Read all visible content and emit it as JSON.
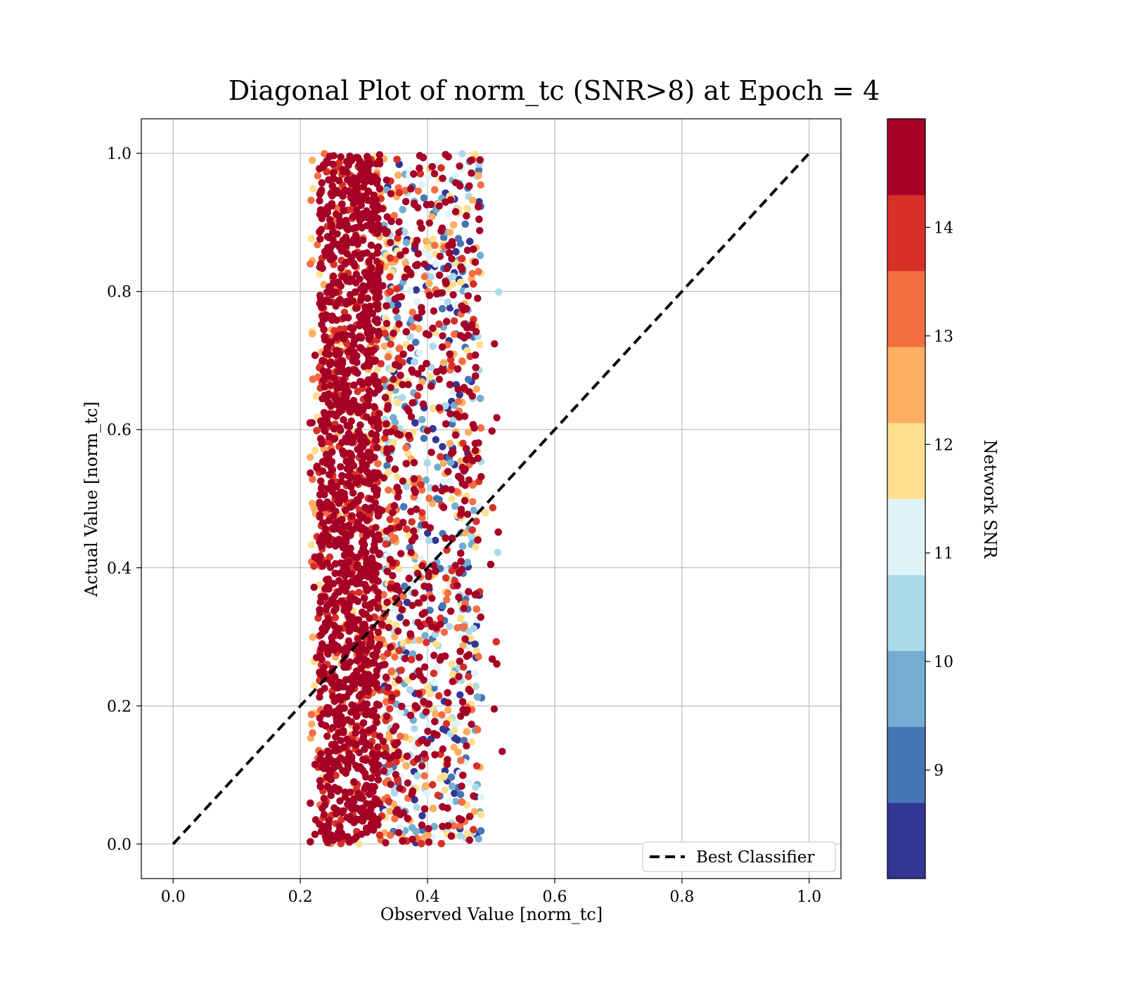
{
  "chart_data": {
    "type": "scatter",
    "title": "Diagonal Plot of norm_tc (SNR>8) at Epoch = 4",
    "xlabel": "Observed Value [norm_tc]",
    "ylabel": "Actual Value [norm_tc]",
    "xlim": [
      -0.05,
      1.05
    ],
    "ylim": [
      -0.05,
      1.05
    ],
    "xticks": [
      "0.0",
      "0.2",
      "0.4",
      "0.6",
      "0.8",
      "1.0"
    ],
    "yticks": [
      "0.0",
      "0.2",
      "0.4",
      "0.6",
      "0.8",
      "1.0"
    ],
    "grid": true,
    "reference_line": {
      "label": "Best Classifier",
      "x": [
        0.0,
        1.0
      ],
      "y": [
        0.0,
        1.0
      ],
      "style": "dashed",
      "color": "#000000"
    },
    "legend": {
      "placement": "lower-right",
      "entries": [
        "Best Classifier"
      ]
    },
    "points_description": {
      "x_range": [
        0.21,
        0.52
      ],
      "y_range": [
        0.0,
        1.0
      ],
      "dense_core_x": [
        0.23,
        0.33
      ]
    },
    "colorbar": {
      "label": "Network SNR",
      "min": 8.0,
      "max": 15.0,
      "ticks": [
        "9",
        "10",
        "11",
        "12",
        "13",
        "14"
      ],
      "tick_values": [
        9,
        10,
        11,
        12,
        13,
        14
      ],
      "colors": [
        "#313695",
        "#4575b4",
        "#74add1",
        "#abd9e9",
        "#e0f3f8",
        "#fee090",
        "#fdae61",
        "#f46d43",
        "#d73027",
        "#a50026"
      ],
      "colormap": "RdYlBu_r",
      "levels": 10
    }
  }
}
